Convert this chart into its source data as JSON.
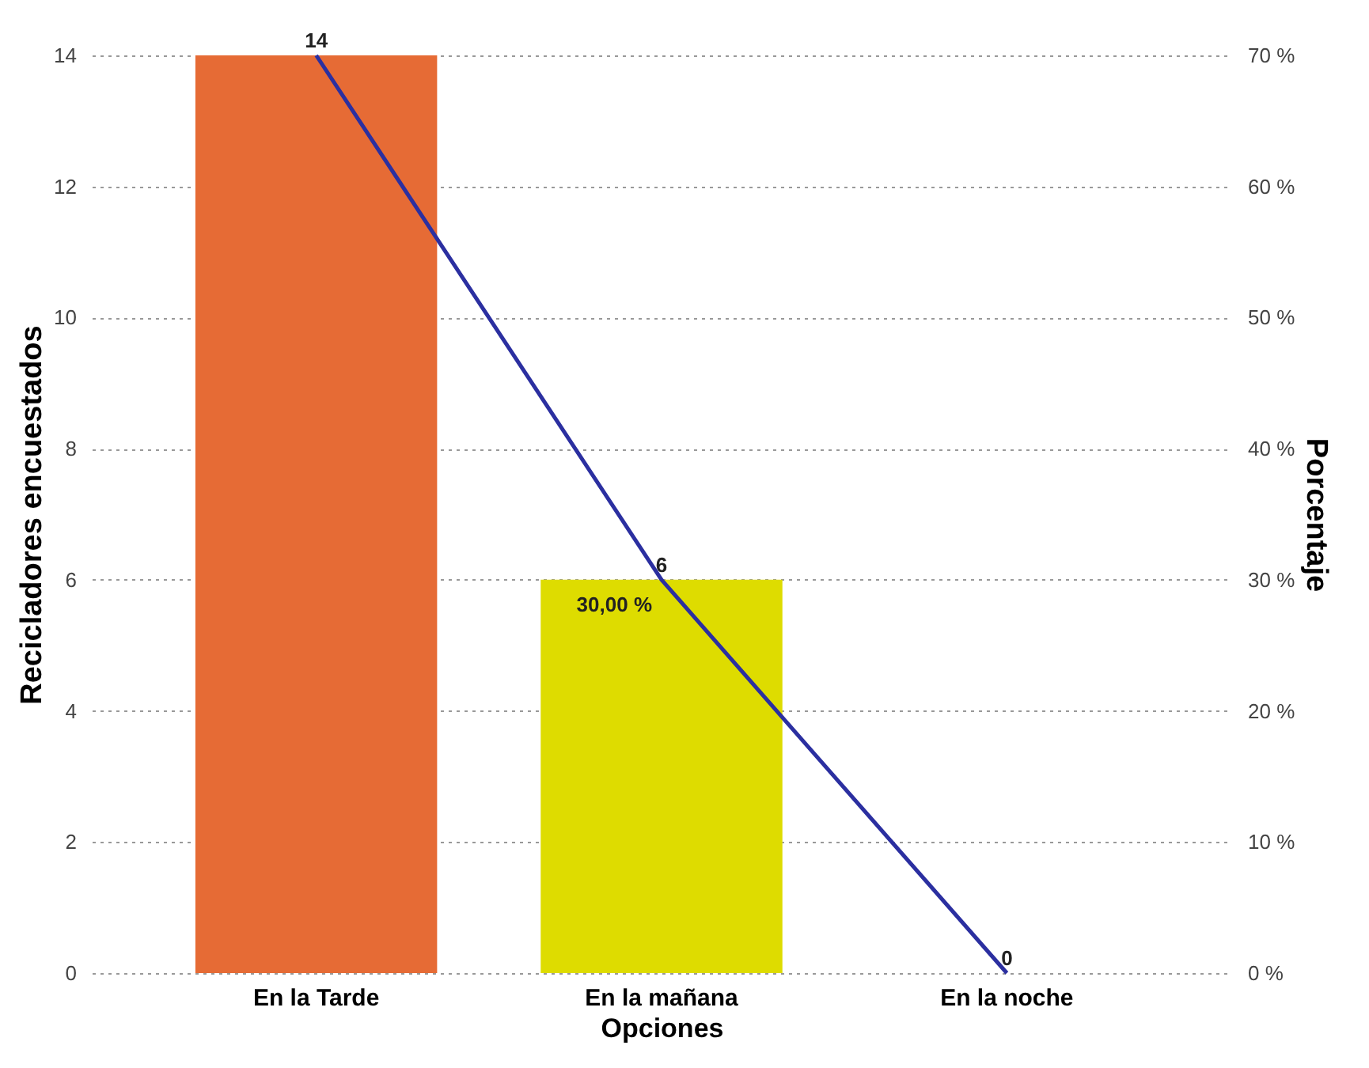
{
  "chart_data": {
    "type": "bar",
    "categories": [
      "En la Tarde",
      "En la mañana",
      "En la noche"
    ],
    "xlabel": "Opciones",
    "ylabel": "Recicladores encuestados",
    "y2label": "Porcentaje",
    "series": [
      {
        "values": [
          14,
          6,
          0
        ],
        "colors": [
          "#e66b35",
          "#dedc00",
          "#dedc00"
        ],
        "value_labels": [
          "14",
          "6",
          "0"
        ]
      },
      {
        "type": "line",
        "axis": "y2",
        "color": "#2b2fa0",
        "values": [
          70,
          30,
          0
        ],
        "value_labels": [
          null,
          "30,00 %",
          null
        ]
      }
    ],
    "ylim": [
      0,
      14
    ],
    "yticks": [
      0,
      2,
      4,
      6,
      8,
      10,
      12,
      14
    ],
    "y2lim": [
      0,
      70
    ],
    "y2ticks": [
      {
        "value": 0,
        "label": "0 %"
      },
      {
        "value": 10,
        "label": "10 %"
      },
      {
        "value": 20,
        "label": "20 %"
      },
      {
        "value": 30,
        "label": "30 %"
      },
      {
        "value": 40,
        "label": "40 %"
      },
      {
        "value": 50,
        "label": "50 %"
      },
      {
        "value": 60,
        "label": "60 %"
      },
      {
        "value": 70,
        "label": "70 %"
      }
    ],
    "grid": "y"
  }
}
